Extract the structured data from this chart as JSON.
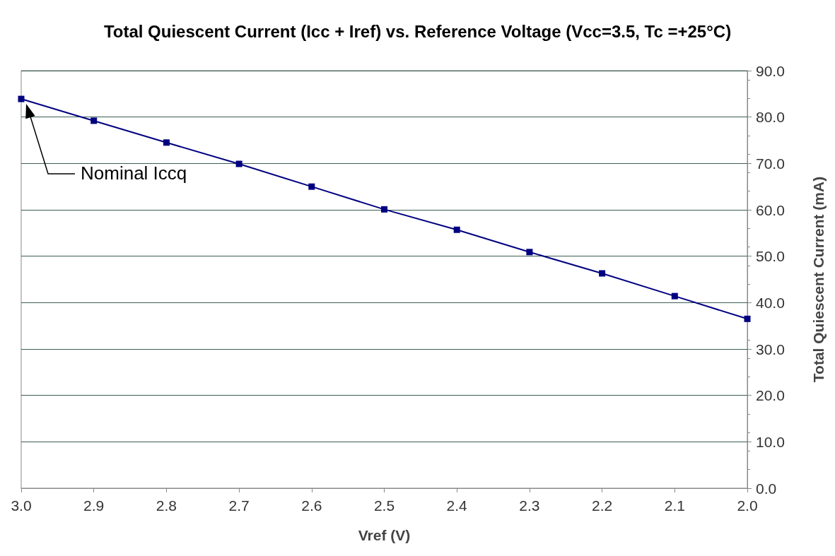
{
  "chart_data": {
    "type": "line",
    "title": "Total Quiescent Current (Icc + Iref) vs. Reference Voltage (Vcc=3.5, Tc =+25°C)",
    "xlabel": "Vref (V)",
    "ylabel": "Total Quiescent Current (mA)",
    "x": [
      3.0,
      2.9,
      2.8,
      2.7,
      2.6,
      2.5,
      2.4,
      2.3,
      2.2,
      2.1,
      2.0
    ],
    "series": [
      {
        "color": "#000080",
        "values": [
          83.9,
          79.2,
          74.5,
          69.9,
          65.0,
          60.1,
          55.7,
          50.9,
          46.3,
          41.4,
          36.5
        ]
      }
    ],
    "xlim": [
      3.0,
      2.0
    ],
    "xticks": [
      {
        "value": 3.0,
        "label": "3.0"
      },
      {
        "value": 2.9,
        "label": "2.9"
      },
      {
        "value": 2.8,
        "label": "2.8"
      },
      {
        "value": 2.7,
        "label": "2.7"
      },
      {
        "value": 2.6,
        "label": "2.6"
      },
      {
        "value": 2.5,
        "label": "2.5"
      },
      {
        "value": 2.4,
        "label": "2.4"
      },
      {
        "value": 2.3,
        "label": "2.3"
      },
      {
        "value": 2.2,
        "label": "2.2"
      },
      {
        "value": 2.1,
        "label": "2.1"
      },
      {
        "value": 2.0,
        "label": "2.0"
      }
    ],
    "ylim": [
      0,
      90
    ],
    "yticks": [
      {
        "value": 0,
        "label": "0.0"
      },
      {
        "value": 10,
        "label": "10.0"
      },
      {
        "value": 20,
        "label": "20.0"
      },
      {
        "value": 30,
        "label": "30.0"
      },
      {
        "value": 40,
        "label": "40.0"
      },
      {
        "value": 50,
        "label": "50.0"
      },
      {
        "value": 60,
        "label": "60.0"
      },
      {
        "value": 70,
        "label": "70.0"
      },
      {
        "value": 80,
        "label": "80.0"
      },
      {
        "value": 90,
        "label": "90.0"
      }
    ],
    "grid": "y",
    "marker": "square",
    "line_style": "solid",
    "annotations": [
      "Nominal Iccq"
    ]
  }
}
